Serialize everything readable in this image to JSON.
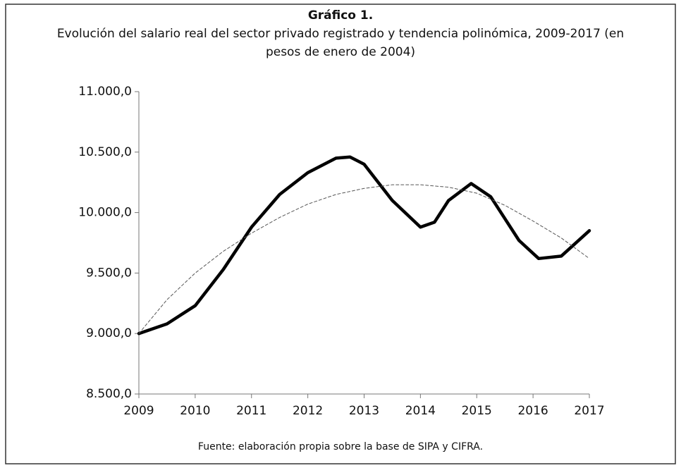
{
  "chart_data": {
    "type": "line",
    "title": "Gráfico 1.",
    "subtitle": [
      "Evolución del salario real del sector privado registrado y tendencia polinómica, 2009-2017 (en",
      "pesos de enero de 2004)"
    ],
    "source": "Fuente: elaboración propia sobre la base de SIPA y CIFRA.",
    "series": [
      {
        "color": "#000000",
        "dashed": false,
        "x": [
          2009,
          2009.5,
          2010,
          2010.5,
          2011,
          2011.5,
          2012,
          2012.5,
          2012.75,
          2013,
          2013.5,
          2014,
          2014.25,
          2014.5,
          2014.9,
          2015.25,
          2015.75,
          2016.1,
          2016.5,
          2017
        ],
        "values": [
          9000,
          9080,
          9230,
          9530,
          9880,
          10150,
          10330,
          10450,
          10460,
          10400,
          10100,
          9880,
          9920,
          10100,
          10240,
          10130,
          9770,
          9620,
          9640,
          9850
        ]
      },
      {
        "color": "#555555",
        "dashed": true,
        "x": [
          2009,
          2009.5,
          2010,
          2010.5,
          2011,
          2011.5,
          2012,
          2012.5,
          2013,
          2013.5,
          2014,
          2014.5,
          2015,
          2015.5,
          2016,
          2016.5,
          2017
        ],
        "values": [
          9000,
          9280,
          9500,
          9680,
          9830,
          9960,
          10070,
          10150,
          10200,
          10230,
          10230,
          10210,
          10160,
          10060,
          9930,
          9790,
          9620
        ]
      }
    ],
    "xlim": [
      2009,
      2017
    ],
    "xticks": [
      2009,
      2010,
      2011,
      2012,
      2013,
      2014,
      2015,
      2016,
      2017
    ],
    "ylim": [
      8500,
      11000
    ],
    "yticks": [
      {
        "value": 8500,
        "label": "8.500,0"
      },
      {
        "value": 9000,
        "label": "9.000,0"
      },
      {
        "value": 9500,
        "label": "9.500,0"
      },
      {
        "value": 10000,
        "label": "10.000,0"
      },
      {
        "value": 10500,
        "label": "10.500,0"
      },
      {
        "value": 11000,
        "label": "11.000,0"
      }
    ],
    "grid": false
  }
}
